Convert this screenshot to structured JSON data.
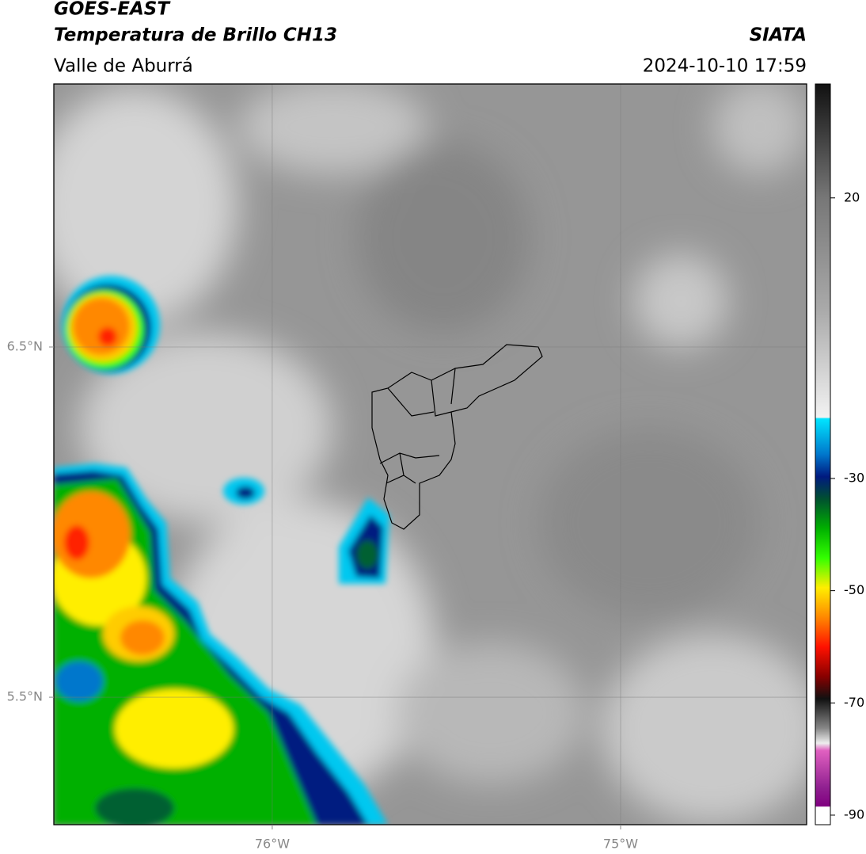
{
  "header": {
    "satellite": "GOES-EAST",
    "product": "Temperatura de Brillo CH13",
    "region": "Valle de Aburrá",
    "source": "SIATA",
    "timestamp": "2024-10-10 17:59"
  },
  "map": {
    "xlim": [
      -76.627,
      -74.466
    ],
    "ylim": [
      5.136,
      7.251
    ],
    "xticks": [
      {
        "value": -76,
        "label": "76°W"
      },
      {
        "value": -75,
        "label": "75°W"
      }
    ],
    "yticks": [
      {
        "value": 6.5,
        "label": "6.5°N"
      },
      {
        "value": 5.5,
        "label": "5.5°N"
      }
    ],
    "grid": true
  },
  "colorbar": {
    "lim": [
      -91.7,
      40.3
    ],
    "ticks": [
      20,
      -30,
      -50,
      -70,
      -90
    ]
  }
}
